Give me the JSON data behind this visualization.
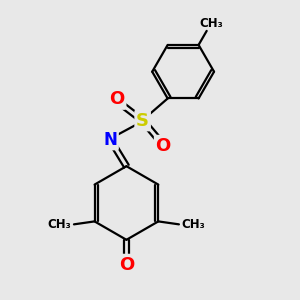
{
  "background_color": "#e8e8e8",
  "atom_colors": {
    "C": "#000000",
    "N": "#0000ff",
    "O": "#ff0000",
    "S": "#cccc00"
  },
  "bond_color": "#000000",
  "bond_width": 1.6,
  "figsize": [
    3.0,
    3.0
  ],
  "dpi": 100,
  "xlim": [
    0,
    10
  ],
  "ylim": [
    0,
    10
  ]
}
